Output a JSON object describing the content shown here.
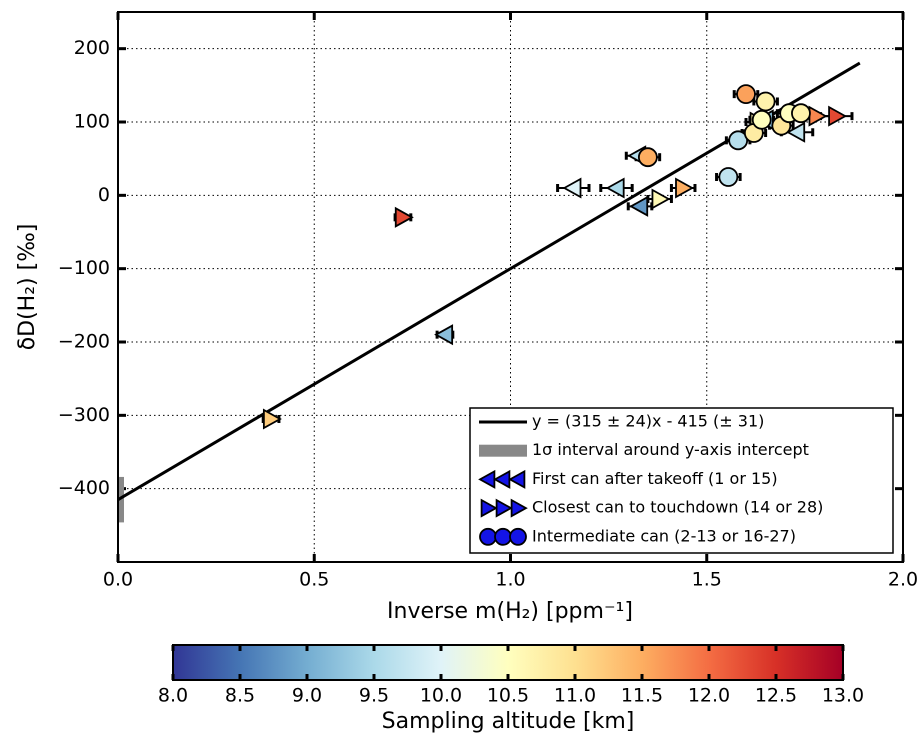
{
  "chart_data": {
    "type": "scatter",
    "xlabel": "Inverse m(H₂) [ppm⁻¹]",
    "ylabel": "δD(H₂) [‰]",
    "xlim": [
      0,
      2
    ],
    "ylim": [
      -500,
      250
    ],
    "xticks": [
      {
        "value": 0,
        "label": "0.0"
      },
      {
        "value": 0.5,
        "label": "0.5"
      },
      {
        "value": 1,
        "label": "1.0"
      },
      {
        "value": 1.5,
        "label": "1.5"
      },
      {
        "value": 2,
        "label": "2.0"
      }
    ],
    "yticks": [
      {
        "value": -400,
        "label": "−400"
      },
      {
        "value": -300,
        "label": "−300"
      },
      {
        "value": -200,
        "label": "−200"
      },
      {
        "value": -100,
        "label": "−100"
      },
      0,
      100,
      200
    ],
    "grid": true,
    "legend": "lower right",
    "fit": {
      "name": "y = (315 ± 24)x - 415 (± 31)",
      "slope": 315,
      "intercept": -415,
      "intercept_err": 31,
      "x_max": 1.89,
      "color": "#000000",
      "band_name": "1σ interval around y-axis intercept",
      "band_color": "#888888"
    },
    "series": [
      {
        "name": "First can after takeoff (1 or 15)",
        "marker": "left",
        "legend_color": "#1414e6",
        "x": [
          0.833,
          1.16,
          1.27,
          1.33,
          1.325,
          1.65,
          1.73
        ],
        "y": [
          -190,
          10,
          10,
          -15,
          54,
          103,
          86
        ],
        "altitude": [
          9.2,
          10.0,
          9.5,
          8.8,
          9.6,
          9.2,
          9.7
        ],
        "xerr": [
          0.02,
          0.04,
          0.04,
          0.03,
          0.03,
          0.03,
          0.04
        ]
      },
      {
        "name": "Closest can to touchdown (14 or 28)",
        "marker": "right",
        "legend_color": "#1414e6",
        "x": [
          0.726,
          0.39,
          1.38,
          1.44,
          1.78,
          1.83,
          1.63
        ],
        "y": [
          -30,
          -305,
          -5,
          10,
          108,
          108,
          100
        ],
        "altitude": [
          12.3,
          11.2,
          10.6,
          11.5,
          11.8,
          12.3,
          10.6
        ],
        "xerr": [
          0.02,
          0.02,
          0.03,
          0.03,
          0.04,
          0.04,
          0.03
        ]
      },
      {
        "name": "Intermediate can (2-13 or 16-27)",
        "marker": "circle",
        "legend_color": "#1414e6",
        "x": [
          1.35,
          1.555,
          1.58,
          1.6,
          1.62,
          1.65,
          1.64,
          1.69,
          1.71,
          1.74
        ],
        "y": [
          52,
          25,
          75,
          138,
          85,
          128,
          103,
          95,
          112,
          112
        ],
        "altitude": [
          11.5,
          9.7,
          9.6,
          11.6,
          10.8,
          10.7,
          10.5,
          10.9,
          10.5,
          10.7
        ],
        "xerr": [
          0.03,
          0.03,
          0.03,
          0.03,
          0.03,
          0.03,
          0.03,
          0.03,
          0.03,
          0.03
        ]
      }
    ],
    "colorbar": {
      "label": "Sampling altitude [km]",
      "clim": [
        8,
        13
      ],
      "ticks": [
        {
          "value": 8,
          "label": "8.0"
        },
        {
          "value": 8.5,
          "label": "8.5"
        },
        {
          "value": 9,
          "label": "9.0"
        },
        {
          "value": 9.5,
          "label": "9.5"
        },
        {
          "value": 10,
          "label": "10.0"
        },
        {
          "value": 10.5,
          "label": "10.5"
        },
        {
          "value": 11,
          "label": "11.0"
        },
        {
          "value": 11.5,
          "label": "11.5"
        },
        {
          "value": 12,
          "label": "12.0"
        },
        {
          "value": 12.5,
          "label": "12.5"
        },
        {
          "value": 13,
          "label": "13.0"
        }
      ],
      "colormap": [
        "#313695",
        "#4575b4",
        "#74add1",
        "#abd9e9",
        "#e0f3f8",
        "#ffffbf",
        "#fee090",
        "#fdae61",
        "#f46d43",
        "#d73027",
        "#a50026"
      ]
    }
  }
}
